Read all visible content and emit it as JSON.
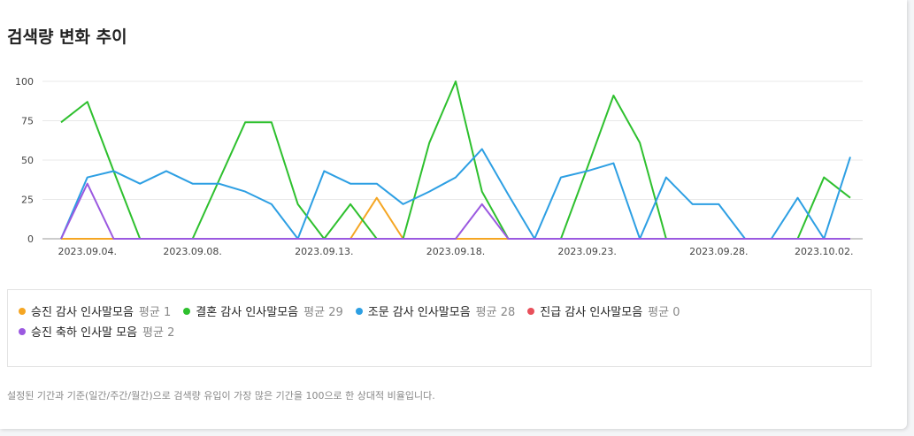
{
  "chart_data": {
    "type": "line",
    "title": "검색량 변화 추이",
    "categories": [
      null,
      "2023.09.04.",
      null,
      null,
      null,
      "2023.09.08.",
      null,
      null,
      null,
      null,
      "2023.09.13.",
      null,
      null,
      null,
      null,
      "2023.09.18.",
      null,
      null,
      null,
      null,
      "2023.09.23.",
      null,
      null,
      null,
      null,
      "2023.09.28.",
      null,
      null,
      null,
      "2023.10.02.",
      null
    ],
    "ylim": [
      0,
      100
    ],
    "yticks": [
      0,
      25,
      50,
      75,
      100
    ],
    "grid": true,
    "series": [
      {
        "name": "승진 감사 인사말모음",
        "average": "평균 1",
        "color": "#f5a623",
        "values": [
          0,
          0,
          0,
          0,
          0,
          0,
          0,
          0,
          0,
          0,
          0,
          0,
          26,
          0,
          0,
          0,
          0,
          0,
          0,
          0,
          0,
          0,
          0,
          0,
          0,
          0,
          0,
          0,
          0,
          0,
          0
        ]
      },
      {
        "name": "결혼 감사 인사말모음",
        "average": "평균 29",
        "color": "#2ec02e",
        "values": [
          74,
          87,
          43,
          0,
          0,
          0,
          37,
          74,
          74,
          22,
          0,
          22,
          0,
          0,
          61,
          100,
          30,
          0,
          0,
          0,
          45,
          91,
          61,
          0,
          0,
          0,
          0,
          0,
          0,
          39,
          26
        ]
      },
      {
        "name": "조문 감사 인사말모음",
        "average": "평균 28",
        "color": "#2d9fe3",
        "values": [
          0,
          39,
          43,
          35,
          43,
          35,
          35,
          30,
          22,
          0,
          43,
          35,
          35,
          22,
          30,
          39,
          57,
          28,
          0,
          39,
          43,
          48,
          0,
          39,
          22,
          22,
          0,
          0,
          26,
          0,
          52
        ]
      },
      {
        "name": "진급 감사 인사말모음",
        "average": "평균 0",
        "color": "#e8505b",
        "values": [
          0,
          0,
          0,
          0,
          0,
          0,
          0,
          0,
          0,
          0,
          0,
          0,
          0,
          0,
          0,
          0,
          0,
          0,
          0,
          0,
          0,
          0,
          0,
          0,
          0,
          0,
          0,
          0,
          0,
          0,
          0
        ]
      },
      {
        "name": "승진 축하 인사말 모음",
        "average": "평균 2",
        "color": "#9b59e0",
        "values": [
          0,
          35,
          0,
          0,
          0,
          0,
          0,
          0,
          0,
          0,
          0,
          0,
          0,
          0,
          0,
          0,
          22,
          0,
          0,
          0,
          0,
          0,
          0,
          0,
          0,
          0,
          0,
          0,
          0,
          0,
          0
        ]
      }
    ],
    "note": "설정된 기간과 기준(일간/주간/월간)으로 검색량 유입이 가장 많은 기간을 100으로 한 상대적 비율입니다."
  }
}
